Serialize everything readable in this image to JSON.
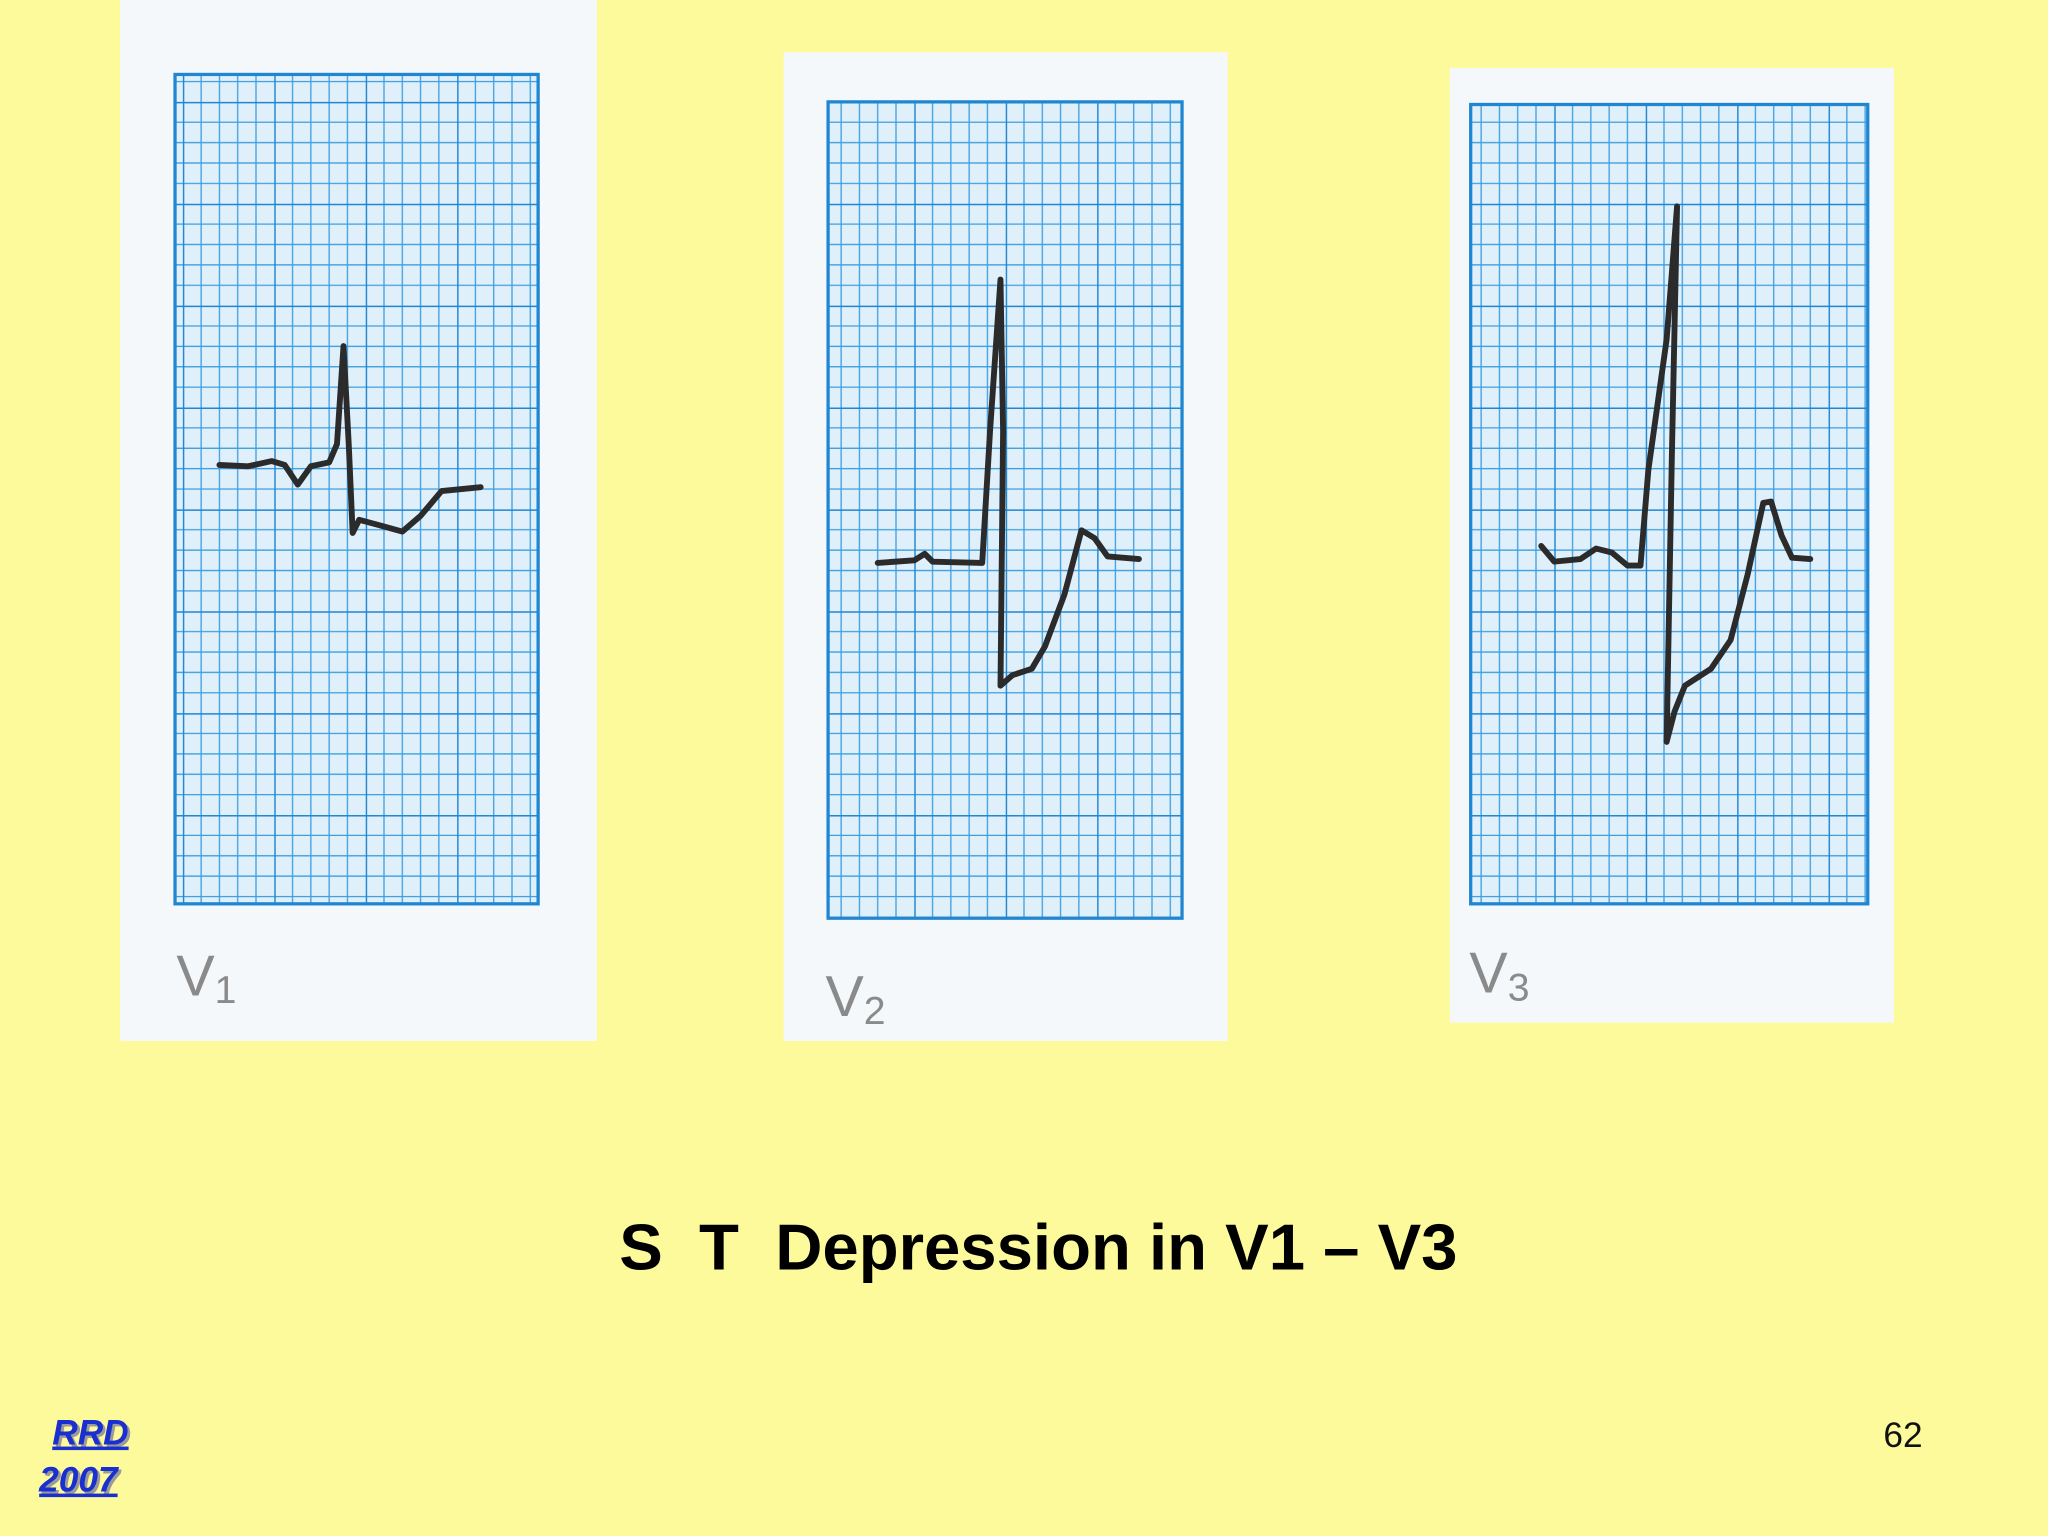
{
  "panels": [
    {
      "label": {
        "lead": "V",
        "sub": "1"
      }
    },
    {
      "label": {
        "lead": "V",
        "sub": "2"
      }
    },
    {
      "label": {
        "lead": "V",
        "sub": "3"
      }
    }
  ],
  "title": "S  T  Depression in V1 – V3",
  "logo": {
    "line1": "RRD",
    "line2": "2007"
  },
  "page_number": "62"
}
